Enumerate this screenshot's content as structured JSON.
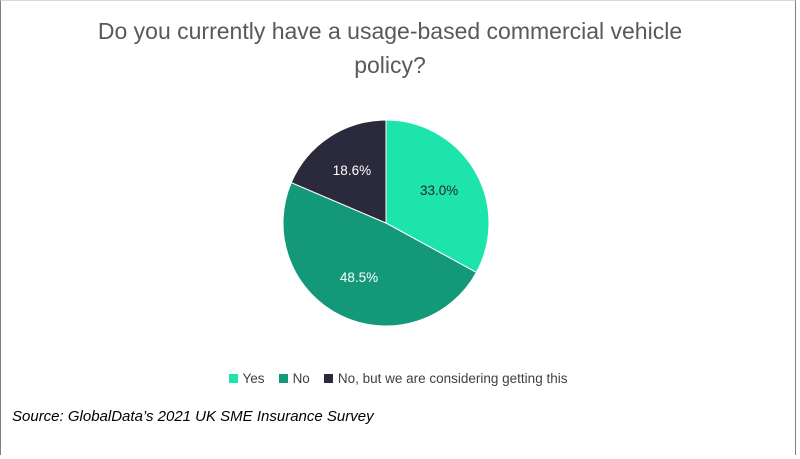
{
  "chart_data": {
    "type": "pie",
    "title": "Do you currently have a usage-based commercial vehicle policy?",
    "categories": [
      "Yes",
      "No",
      "No, but we are considering getting this"
    ],
    "values": [
      33.0,
      48.5,
      18.6
    ],
    "labels": [
      "33.0%",
      "48.5%",
      "18.6%"
    ],
    "colors": [
      "#1de3ad",
      "#14987a",
      "#2b2a3d"
    ],
    "label_colors": [
      "#262626",
      "#ffffff",
      "#ffffff"
    ],
    "start_angle_deg": 0,
    "direction": "clockwise",
    "legend_position": "bottom"
  },
  "source": "Source: GlobalData’s 2021 UK SME Insurance Survey"
}
